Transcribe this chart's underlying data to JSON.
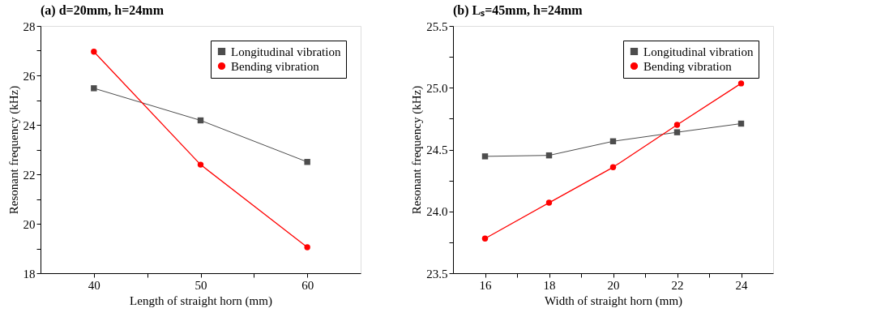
{
  "chart_data": [
    {
      "type": "line",
      "title": "(a) d=20mm, h=24mm",
      "xlabel": "Length of straight horn (mm)",
      "ylabel": "Resonant frequency (kHz)",
      "x": [
        40,
        50,
        60
      ],
      "xlim": [
        35,
        65
      ],
      "xticks": [
        40,
        {
          "value": 45,
          "label": null
        },
        50,
        {
          "value": 55,
          "label": null
        },
        60
      ],
      "ylim": [
        18,
        28
      ],
      "yticks": [
        18,
        {
          "value": 19,
          "label": null
        },
        20,
        {
          "value": 21,
          "label": null
        },
        22,
        {
          "value": 23,
          "label": null
        },
        24,
        {
          "value": 25,
          "label": null
        },
        26,
        {
          "value": 27,
          "label": null
        },
        28
      ],
      "grid": false,
      "legend": "top right",
      "series": [
        {
          "name": "Longitudinal vibration",
          "color": "#4d4d4d",
          "marker": "square",
          "values": [
            25.48,
            24.18,
            22.5
          ]
        },
        {
          "name": "Bending vibration",
          "color": "#ff0000",
          "marker": "circle",
          "values": [
            26.96,
            22.39,
            19.05
          ]
        }
      ]
    },
    {
      "type": "line",
      "title": "(b) Lₛ=45mm, h=24mm",
      "xlabel": "Width of straight horn (mm)",
      "ylabel": "Resonant frequency (kHz)",
      "x": [
        16,
        18,
        20,
        22,
        24
      ],
      "xlim": [
        15,
        25
      ],
      "xticks": [
        16,
        {
          "value": 17,
          "label": null
        },
        18,
        {
          "value": 19,
          "label": null
        },
        20,
        {
          "value": 21,
          "label": null
        },
        22,
        {
          "value": 23,
          "label": null
        },
        24
      ],
      "ylim": [
        23.5,
        25.5
      ],
      "yticks": [
        {
          "value": 23.5,
          "label": "23.5"
        },
        {
          "value": 23.75,
          "label": null
        },
        {
          "value": 24,
          "label": "24.0"
        },
        {
          "value": 24.25,
          "label": null
        },
        {
          "value": 24.5,
          "label": "24.5"
        },
        {
          "value": 24.75,
          "label": null
        },
        {
          "value": 25,
          "label": "25.0"
        },
        {
          "value": 25.25,
          "label": null
        },
        {
          "value": 25.5,
          "label": "25.5"
        }
      ],
      "grid": false,
      "legend": "top right",
      "series": [
        {
          "name": "Longitudinal vibration",
          "color": "#4d4d4d",
          "marker": "square",
          "values": [
            24.445,
            24.453,
            24.567,
            24.64,
            24.71
          ]
        },
        {
          "name": "Bending vibration",
          "color": "#ff0000",
          "marker": "circle",
          "values": [
            23.78,
            24.07,
            24.357,
            24.7,
            25.035
          ]
        }
      ]
    }
  ]
}
